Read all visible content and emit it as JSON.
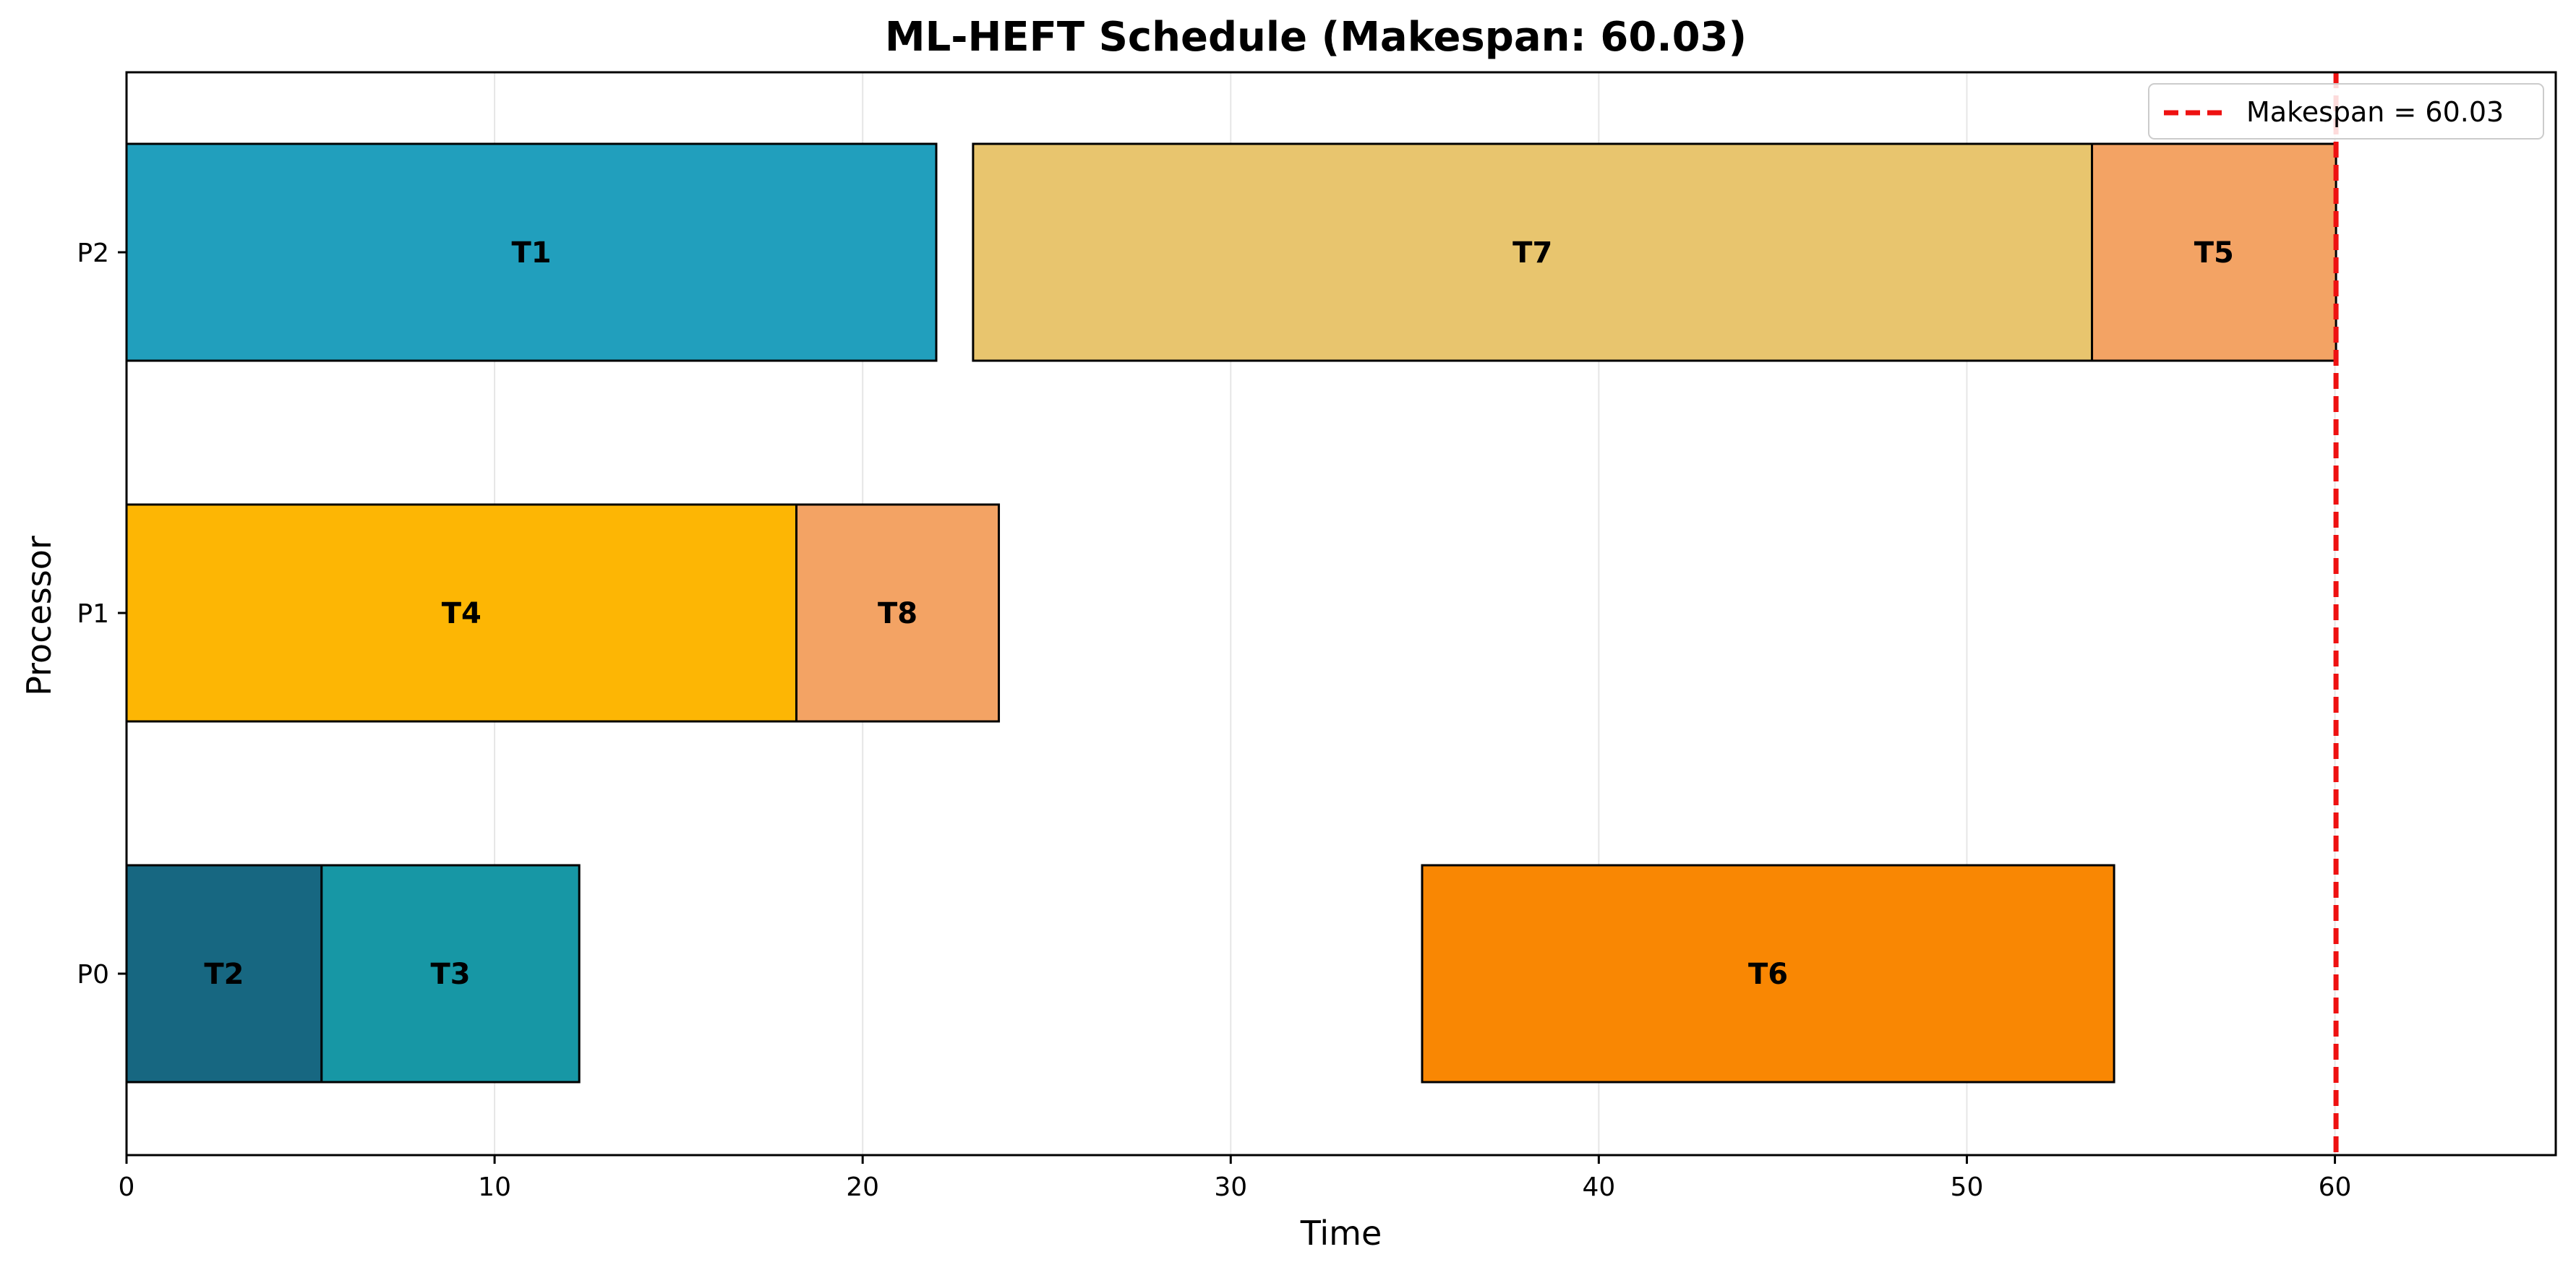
{
  "chart_data": {
    "type": "gantt",
    "title": "ML-HEFT Schedule (Makespan: 60.03)",
    "xlabel": "Time",
    "ylabel": "Processor",
    "xlim": [
      0,
      66
    ],
    "x_ticks": [
      0,
      10,
      20,
      30,
      40,
      50,
      60
    ],
    "x_tick_labels": [
      "0",
      "10",
      "20",
      "30",
      "40",
      "50",
      "60"
    ],
    "processors": [
      "P0",
      "P1",
      "P2"
    ],
    "grid": "vertical",
    "tasks": [
      {
        "label": "T2",
        "processor": "P0",
        "start": 0.0,
        "end": 5.3,
        "color": "#176781"
      },
      {
        "label": "T3",
        "processor": "P0",
        "start": 5.3,
        "end": 12.3,
        "color": "#1797A5"
      },
      {
        "label": "T6",
        "processor": "P0",
        "start": 35.2,
        "end": 54.0,
        "color": "#F98703"
      },
      {
        "label": "T4",
        "processor": "P1",
        "start": 0.0,
        "end": 18.2,
        "color": "#FDB604"
      },
      {
        "label": "T8",
        "processor": "P1",
        "start": 18.2,
        "end": 23.7,
        "color": "#F3A364"
      },
      {
        "label": "T1",
        "processor": "P2",
        "start": 0.0,
        "end": 22.0,
        "color": "#219FBD"
      },
      {
        "label": "T7",
        "processor": "P2",
        "start": 23.0,
        "end": 53.4,
        "color": "#E8C56E"
      },
      {
        "label": "T5",
        "processor": "P2",
        "start": 53.4,
        "end": 60.03,
        "color": "#F3A364"
      }
    ],
    "makespan": {
      "value": 60.03,
      "color": "#EE1111",
      "legend_label": "Makespan = 60.03"
    },
    "legend_position": "top-right"
  }
}
